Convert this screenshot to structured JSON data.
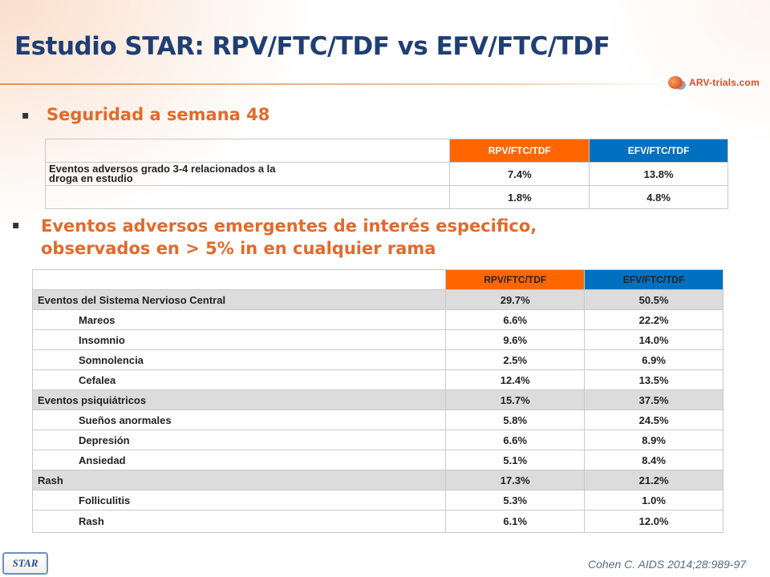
{
  "title": "Estudio STAR: RPV/FTC/TDF vs EFV/FTC/TDF",
  "logo_text": "ARV-trials.com",
  "bullets": [
    "Seguridad a semana 48",
    "Eventos adversos emergentes de interés especifico, observados en > 5% in en cualquier rama"
  ],
  "colors": {
    "title": "#1f3f73",
    "bullet": "#e26a2c",
    "header_orange": "#ff6600",
    "header_blue": "#0070c0",
    "category_row": "#dcdcdc"
  },
  "table1": {
    "headers": [
      "",
      "RPV/FTC/TDF",
      "EFV/FTC/TDF"
    ],
    "rows": [
      {
        "label": "Eventos adversos grado 3-4  relacionados a la droga en estudio",
        "rpv": "7.4%",
        "efv": "13.8%"
      },
      {
        "label": "",
        "rpv": "1.8%",
        "efv": "4.8%"
      }
    ]
  },
  "table2": {
    "headers": [
      "",
      "RPV/FTC/TDF",
      "EFV/FTC/TDF"
    ],
    "rows": [
      {
        "label": "Eventos del Sistema Nervioso Central",
        "rpv": "29.7%",
        "efv": "50.5%",
        "kind": "category"
      },
      {
        "label": "Mareos",
        "rpv": "6.6%",
        "efv": "22.2%",
        "kind": "sub"
      },
      {
        "label": "Insomnio",
        "rpv": "9.6%",
        "efv": "14.0%",
        "kind": "sub"
      },
      {
        "label": "Somnolencia",
        "rpv": "2.5%",
        "efv": "6.9%",
        "kind": "sub"
      },
      {
        "label": "Cefalea",
        "rpv": "12.4%",
        "efv": "13.5%",
        "kind": "sub"
      },
      {
        "label": "Eventos psiquiátricos",
        "rpv": "15.7%",
        "efv": "37.5%",
        "kind": "category"
      },
      {
        "label": "Sueños anormales",
        "rpv": "5.8%",
        "efv": "24.5%",
        "kind": "sub"
      },
      {
        "label": "Depresión",
        "rpv": "6.6%",
        "efv": "8.9%",
        "kind": "sub"
      },
      {
        "label": "Ansiedad",
        "rpv": "5.1%",
        "efv": "8.4%",
        "kind": "sub"
      },
      {
        "label": "Rash",
        "rpv": "17.3%",
        "efv": "21.2%",
        "kind": "category"
      },
      {
        "label": "Folliculitis",
        "rpv": "5.3%",
        "efv": "1.0%",
        "kind": "sub"
      },
      {
        "label": "Rash",
        "rpv": "6.1%",
        "efv": "12.0%",
        "kind": "sub"
      }
    ]
  },
  "footer": {
    "badge": "STAR",
    "citation": "Cohen C. AIDS 2014;28:989-97"
  }
}
